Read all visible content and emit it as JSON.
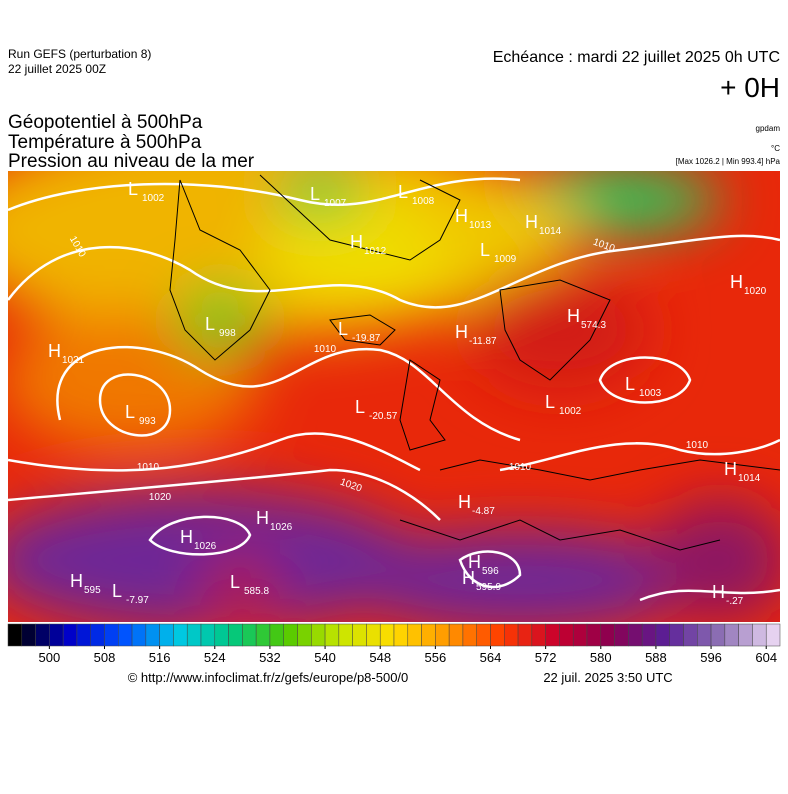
{
  "header": {
    "run": "Run GEFS (perturbation 8)",
    "run_date": "22 juillet 2025 00Z",
    "valid": "Echéance : mardi 22 juillet 2025 0h UTC",
    "lead": "+ 0H"
  },
  "titles": [
    "Géopotentiel à 500hPa",
    "Température à 500hPa",
    "Pression au niveau de la mer"
  ],
  "units": {
    "geopotential": "gpdam",
    "temperature": "°C",
    "pressure": "[Max 1026.2 | Min 993.4] hPa"
  },
  "map_labels": [
    {
      "kind": "L",
      "value": "1002"
    },
    {
      "kind": "L",
      "value": "1007"
    },
    {
      "kind": "L",
      "value": "1008"
    },
    {
      "kind": "H",
      "value": "1013"
    },
    {
      "kind": "H",
      "value": "1014"
    },
    {
      "kind": "L",
      "value": "1009"
    },
    {
      "kind": "H",
      "value": "1012"
    },
    {
      "kind": "L",
      "value": "998"
    },
    {
      "kind": "H",
      "value": "1021"
    },
    {
      "kind": "L",
      "value": "993"
    },
    {
      "kind": "L",
      "value": "-19.87"
    },
    {
      "kind": "H",
      "value": "-11.87"
    },
    {
      "kind": "H",
      "value": "574.3"
    },
    {
      "kind": "L",
      "value": "-20.57"
    },
    {
      "kind": "L",
      "value": "1002"
    },
    {
      "kind": "L",
      "value": "1003"
    },
    {
      "kind": "H",
      "value": "1020"
    },
    {
      "kind": "H",
      "value": "1014"
    },
    {
      "kind": "H",
      "value": "-4.87"
    },
    {
      "kind": "H",
      "value": "1026"
    },
    {
      "kind": "H",
      "value": "1026"
    },
    {
      "kind": "H",
      "value": "595"
    },
    {
      "kind": "L",
      "value": "-7.97"
    },
    {
      "kind": "L",
      "value": "585.8"
    },
    {
      "kind": "H",
      "value": "596"
    },
    {
      "kind": "H",
      "value": "595.9"
    },
    {
      "kind": "H",
      "value": "-.27"
    }
  ],
  "isobar_labels": [
    "1010",
    "1010",
    "1010",
    "1010",
    "1010",
    "1010",
    "1020",
    "1020"
  ],
  "colorbar": {
    "range": [
      494,
      606
    ],
    "step": 2,
    "ticks": [
      500,
      508,
      516,
      524,
      532,
      540,
      548,
      556,
      564,
      572,
      580,
      588,
      596,
      604
    ],
    "stops": [
      "#000000",
      "#0000c8",
      "#0050ff",
      "#00c8e6",
      "#00c882",
      "#50c800",
      "#c8e600",
      "#ffdc00",
      "#ff9600",
      "#ff3c00",
      "#c8002d",
      "#8c0050",
      "#5a1e96",
      "#8c6eb4",
      "#e6d2f0"
    ]
  },
  "footer": {
    "source": "© http://www.infoclimat.fr/z/gefs/europe/p8-500/0",
    "generated": "22 juil. 2025  3:50 UTC"
  }
}
